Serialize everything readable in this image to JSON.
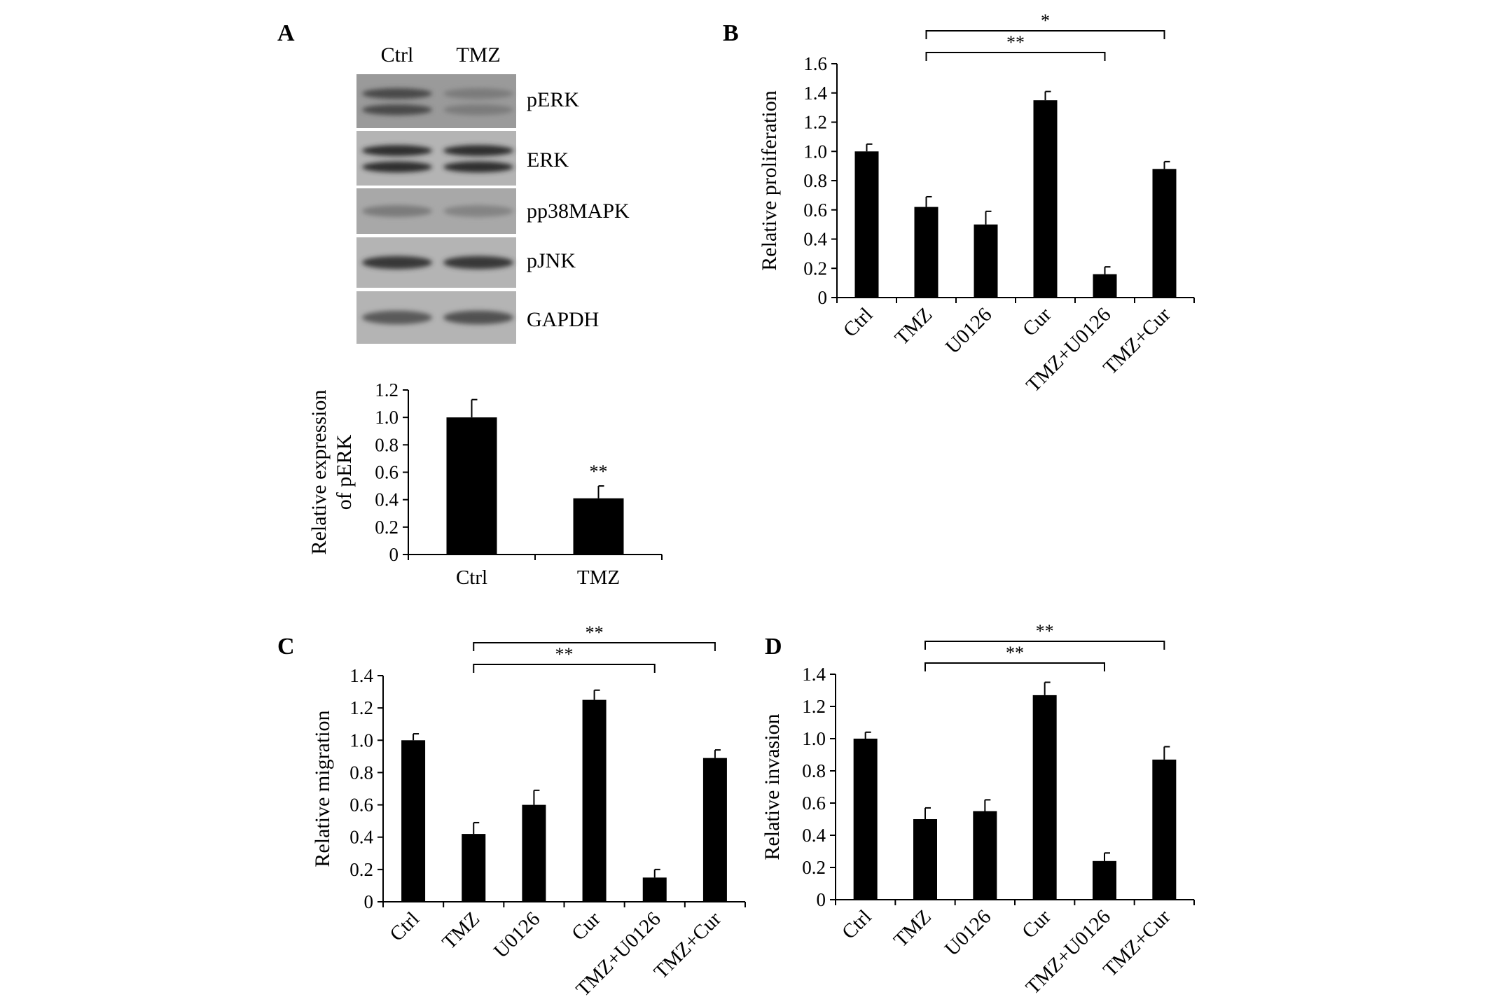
{
  "panels": {
    "A": "A",
    "B": "B",
    "C": "C",
    "D": "D"
  },
  "blot": {
    "lanes": [
      "Ctrl",
      "TMZ"
    ],
    "rows": [
      {
        "label": "pERK",
        "bands": 2,
        "intensity": [
          0.75,
          0.45
        ]
      },
      {
        "label": "ERK",
        "bands": 2,
        "intensity": [
          0.9,
          0.9
        ]
      },
      {
        "label": "pp38MAPK",
        "bands": 1,
        "intensity": [
          0.45,
          0.4
        ]
      },
      {
        "label": "pJNK",
        "bands": 1,
        "intensity": [
          0.85,
          0.85
        ]
      },
      {
        "label": "GAPDH",
        "bands": 1,
        "intensity": [
          0.65,
          0.7
        ]
      }
    ]
  },
  "chart_data": [
    {
      "panel": "A",
      "type": "bar",
      "categories": [
        "Ctrl",
        "TMZ"
      ],
      "values": [
        1.0,
        0.41
      ],
      "errors": [
        0.13,
        0.09
      ],
      "ylabel_lines": [
        "Relative expression",
        "of pERK"
      ],
      "ylim": [
        0,
        1.2
      ],
      "yticks": [
        "0",
        "0.2",
        "0.4",
        "0.6",
        "0.8",
        "1.0",
        "1.2"
      ],
      "bar_labels": [
        "",
        "**"
      ],
      "brackets": [],
      "grid": false
    },
    {
      "panel": "B",
      "type": "bar",
      "categories": [
        "Ctrl",
        "TMZ",
        "U0126",
        "Cur",
        "TMZ+U0126",
        "TMZ+Cur"
      ],
      "values": [
        1.0,
        0.62,
        0.5,
        1.35,
        0.16,
        0.88
      ],
      "errors": [
        0.05,
        0.07,
        0.09,
        0.06,
        0.05,
        0.05
      ],
      "ylabel_lines": [
        "Relative proliferation"
      ],
      "ylim": [
        0,
        1.6
      ],
      "yticks": [
        "0",
        "0.2",
        "0.4",
        "0.6",
        "0.8",
        "1.0",
        "1.2",
        "1.4",
        "1.6"
      ],
      "bar_labels": [],
      "brackets": [
        {
          "from": 1,
          "to": 4,
          "label": "**",
          "level": 1
        },
        {
          "from": 1,
          "to": 5,
          "label": "*",
          "level": 2
        }
      ],
      "grid": false
    },
    {
      "panel": "C",
      "type": "bar",
      "categories": [
        "Ctrl",
        "TMZ",
        "U0126",
        "Cur",
        "TMZ+U0126",
        "TMZ+Cur"
      ],
      "values": [
        1.0,
        0.42,
        0.6,
        1.25,
        0.15,
        0.89
      ],
      "errors": [
        0.04,
        0.07,
        0.09,
        0.06,
        0.05,
        0.05
      ],
      "ylabel_lines": [
        "Relative migration"
      ],
      "ylim": [
        0,
        1.4
      ],
      "yticks": [
        "0",
        "0.2",
        "0.4",
        "0.6",
        "0.8",
        "1.0",
        "1.2",
        "1.4"
      ],
      "bar_labels": [],
      "brackets": [
        {
          "from": 1,
          "to": 4,
          "label": "**",
          "level": 1
        },
        {
          "from": 1,
          "to": 5,
          "label": "**",
          "level": 2
        }
      ],
      "grid": false
    },
    {
      "panel": "D",
      "type": "bar",
      "categories": [
        "Ctrl",
        "TMZ",
        "U0126",
        "Cur",
        "TMZ+U0126",
        "TMZ+Cur"
      ],
      "values": [
        1.0,
        0.5,
        0.55,
        1.27,
        0.24,
        0.87
      ],
      "errors": [
        0.04,
        0.07,
        0.07,
        0.08,
        0.05,
        0.08
      ],
      "ylabel_lines": [
        "Relative invasion"
      ],
      "ylim": [
        0,
        1.4
      ],
      "yticks": [
        "0",
        "0.2",
        "0.4",
        "0.6",
        "0.8",
        "1.0",
        "1.2",
        "1.4"
      ],
      "bar_labels": [],
      "brackets": [
        {
          "from": 1,
          "to": 4,
          "label": "**",
          "level": 1
        },
        {
          "from": 1,
          "to": 5,
          "label": "**",
          "level": 2
        }
      ],
      "grid": false
    }
  ]
}
